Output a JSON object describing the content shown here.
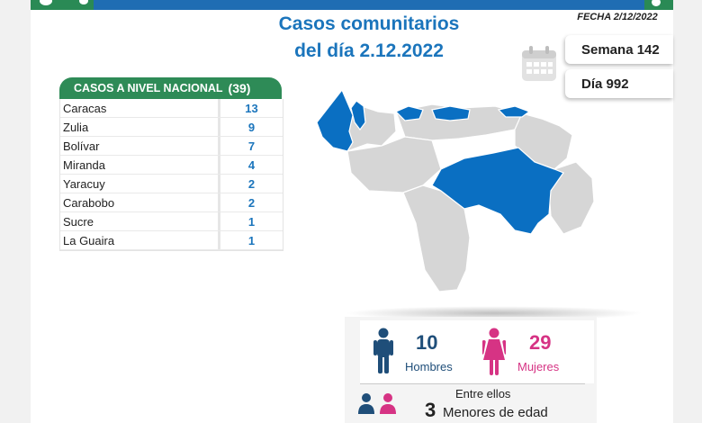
{
  "header": {
    "title_line1": "Casos comunitarios",
    "title_line2": "del día 2.12.2022",
    "fecha": "FECHA 2/12/2022"
  },
  "badges": {
    "semana": "Semana 142",
    "dia": "Día 992",
    "calendar_icon": "calendar-icon"
  },
  "national_table": {
    "heading": "CASOS A NIVEL NACIONAL",
    "total": "(39)",
    "rows": [
      {
        "state": "Caracas",
        "cases": "13"
      },
      {
        "state": "Zulia",
        "cases": "9"
      },
      {
        "state": "Bolívar",
        "cases": "7"
      },
      {
        "state": "Miranda",
        "cases": "4"
      },
      {
        "state": "Yaracuy",
        "cases": "2"
      },
      {
        "state": "Carabobo",
        "cases": "2"
      },
      {
        "state": "Sucre",
        "cases": "1"
      },
      {
        "state": "La Guaira",
        "cases": "1"
      }
    ]
  },
  "map": {
    "highlight_color": "#0a6fc2",
    "base_color": "#d6d6d6"
  },
  "demographics": {
    "men_count": "10",
    "men_label": "Hombres",
    "women_count": "29",
    "women_label": "Mujeres",
    "among_label": "Entre ellos",
    "minors_count": "3",
    "minors_label": "Menores de edad",
    "men_color": "#1f4e79",
    "women_color": "#d63384"
  }
}
